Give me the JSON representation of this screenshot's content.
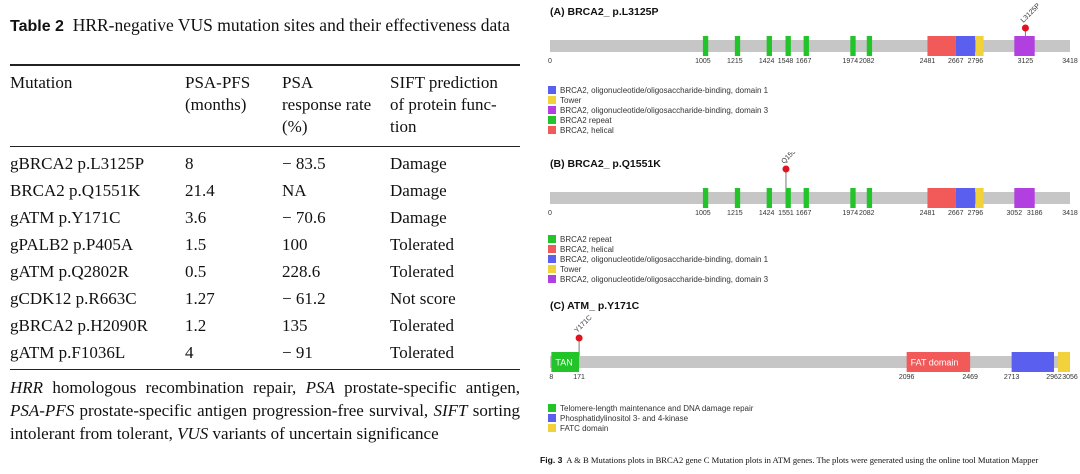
{
  "table": {
    "label": "Table 2",
    "title": "HRR-negative VUS mutation sites and their effectiveness data",
    "headers": {
      "mutation": "Mutation",
      "psa_pfs": [
        "PSA-PFS",
        "(months)"
      ],
      "psa_rr": [
        "PSA",
        "response rate",
        "(%)"
      ],
      "sift": [
        "SIFT prediction",
        "of protein func-",
        "tion"
      ]
    },
    "rows": [
      {
        "mutation": "gBRCA2 p.L3125P",
        "pfs": "8",
        "rr": "− 83.5",
        "sift": "Damage"
      },
      {
        "mutation": "BRCA2 p.Q1551K",
        "pfs": "21.4",
        "rr": "NA",
        "sift": "Damage"
      },
      {
        "mutation": "gATM p.Y171C",
        "pfs": "3.6",
        "rr": "− 70.6",
        "sift": "Damage"
      },
      {
        "mutation": "gPALB2 p.P405A",
        "pfs": "1.5",
        "rr": "100",
        "sift": "Tolerated"
      },
      {
        "mutation": "gATM p.Q2802R",
        "pfs": "0.5",
        "rr": "228.6",
        "sift": "Tolerated"
      },
      {
        "mutation": "gCDK12 p.R663C",
        "pfs": "1.27",
        "rr": "− 61.2",
        "sift": "Not score"
      },
      {
        "mutation": "gBRCA2 p.H2090R",
        "pfs": "1.2",
        "rr": "135",
        "sift": "Tolerated"
      },
      {
        "mutation": "gATM p.F1036L",
        "pfs": "4",
        "rr": "− 91",
        "sift": "Tolerated"
      }
    ],
    "footnote": [
      {
        "abbr": "HRR",
        "def": "homologous recombination repair"
      },
      {
        "abbr": "PSA",
        "def": "prostate-specific antigen"
      },
      {
        "abbr": "PSA-PFS",
        "def": "prostate-specific antigen progression-free survival"
      },
      {
        "abbr": "SIFT",
        "def": "sorting intolerant from tolerant"
      },
      {
        "abbr": "VUS",
        "def": "variants of uncertain significance"
      }
    ]
  },
  "figure": {
    "caption_label": "Fig. 3",
    "caption_text": "A & B Mutations plots in BRCA2 gene C Mutation plots in ATM genes. The plots were generated using the online tool Mutation Mapper",
    "colors": {
      "repeat": "#22c42a",
      "helical": "#f25a5a",
      "ob1": "#5b5ff0",
      "tower": "#f2d23a",
      "ob3": "#b23fe0",
      "tan": "#22c42a",
      "fat": "#f25a5a",
      "pi3k": "#5b5ff0",
      "fatc": "#f2d23a",
      "backbone": "#c6c6c6",
      "lollipop": "#e0141e"
    },
    "panels": [
      {
        "title": "(A)  BRCA2_ p.L3125P",
        "length": 3418,
        "mutation": {
          "label": "L3125P",
          "pos": 3125
        },
        "domains": [
          {
            "type": "repeat",
            "start": 1005,
            "end": 1040
          },
          {
            "type": "repeat",
            "start": 1215,
            "end": 1250
          },
          {
            "type": "repeat",
            "start": 1424,
            "end": 1459
          },
          {
            "type": "repeat",
            "start": 1548,
            "end": 1583
          },
          {
            "type": "repeat",
            "start": 1667,
            "end": 1702
          },
          {
            "type": "repeat",
            "start": 1974,
            "end": 2009
          },
          {
            "type": "repeat",
            "start": 2082,
            "end": 2117
          },
          {
            "type": "helical",
            "start": 2481,
            "end": 2667
          },
          {
            "type": "ob1",
            "start": 2667,
            "end": 2796
          },
          {
            "type": "tower",
            "start": 2800,
            "end": 2850
          },
          {
            "type": "ob3",
            "start": 3052,
            "end": 3186
          }
        ],
        "ticks": [
          "0",
          "1005",
          "1215",
          "1424",
          "1548",
          "1667",
          "1974",
          "2082",
          "2481",
          "2667",
          "2796",
          "3125",
          "3418"
        ],
        "legend": [
          {
            "color": "ob1",
            "label": "BRCA2, oligonucleotide/oligosaccharide-binding, domain 1"
          },
          {
            "color": "tower",
            "label": "Tower"
          },
          {
            "color": "ob3",
            "label": "BRCA2, oligonucleotide/oligosaccharide-binding, domain 3"
          },
          {
            "color": "repeat",
            "label": "BRCA2 repeat"
          },
          {
            "color": "helical",
            "label": "BRCA2, helical"
          }
        ]
      },
      {
        "title": "(B)  BRCA2_ p.Q1551K",
        "length": 3418,
        "mutation": {
          "label": "Q1551K",
          "pos": 1551
        },
        "domains": [
          {
            "type": "repeat",
            "start": 1005,
            "end": 1040
          },
          {
            "type": "repeat",
            "start": 1215,
            "end": 1250
          },
          {
            "type": "repeat",
            "start": 1424,
            "end": 1459
          },
          {
            "type": "repeat",
            "start": 1548,
            "end": 1583
          },
          {
            "type": "repeat",
            "start": 1667,
            "end": 1702
          },
          {
            "type": "repeat",
            "start": 1974,
            "end": 2009
          },
          {
            "type": "repeat",
            "start": 2082,
            "end": 2117
          },
          {
            "type": "helical",
            "start": 2481,
            "end": 2667
          },
          {
            "type": "ob1",
            "start": 2667,
            "end": 2796
          },
          {
            "type": "tower",
            "start": 2800,
            "end": 2850
          },
          {
            "type": "ob3",
            "start": 3052,
            "end": 3186
          }
        ],
        "ticks": [
          "0",
          "1005",
          "1215",
          "1424",
          "1551",
          "1667",
          "1974",
          "2082",
          "2481",
          "2667",
          "2796",
          "3052",
          "3186",
          "3418"
        ],
        "legend": [
          {
            "color": "repeat",
            "label": "BRCA2 repeat"
          },
          {
            "color": "helical",
            "label": "BRCA2, helical"
          },
          {
            "color": "ob1",
            "label": "BRCA2, oligonucleotide/oligosaccharide-binding, domain 1"
          },
          {
            "color": "tower",
            "label": "Tower"
          },
          {
            "color": "ob3",
            "label": "BRCA2, oligonucleotide/oligosaccharide-binding, domain 3"
          }
        ]
      },
      {
        "title": "(C)  ATM_ p.Y171C",
        "length": 3056,
        "mutation": {
          "label": "Y171C",
          "pos": 171
        },
        "domains": [
          {
            "type": "tan",
            "start": 8,
            "end": 171,
            "label": "TAN"
          },
          {
            "type": "fat",
            "start": 2096,
            "end": 2469,
            "label": "FAT domain"
          },
          {
            "type": "pi3k",
            "start": 2713,
            "end": 2962
          },
          {
            "type": "fatc",
            "start": 2985,
            "end": 3056
          }
        ],
        "ticks": [
          "8",
          "171",
          "2096",
          "2469",
          "2713",
          "2962",
          "3056"
        ],
        "legend": [
          {
            "color": "tan",
            "label": "Telomere-length maintenance and DNA damage repair"
          },
          {
            "color": "pi3k",
            "label": "Phosphatidylinositol 3- and 4-kinase"
          },
          {
            "color": "fatc",
            "label": "FATC domain"
          }
        ]
      }
    ]
  }
}
